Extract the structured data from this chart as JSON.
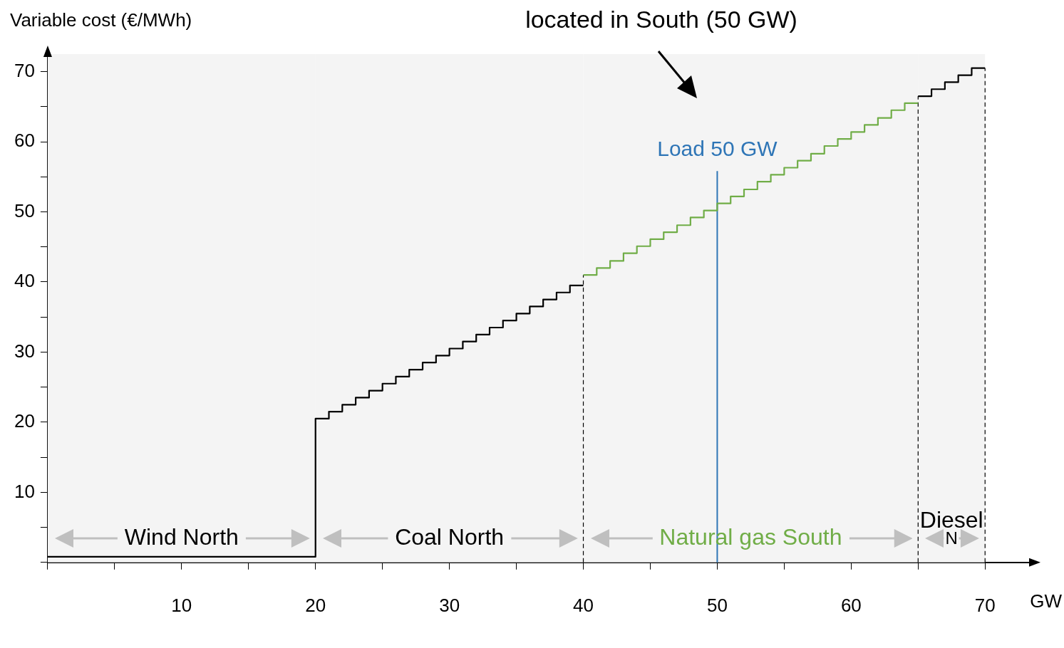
{
  "chart_data": {
    "type": "step",
    "title": "located in South (50 GW)",
    "xlabel": "GW",
    "ylabel": "Variable cost (€/MWh)",
    "xlim": [
      0,
      73.5
    ],
    "ylim": [
      0,
      72.5
    ],
    "xticks": [
      {
        "value": 0,
        "label": null
      },
      {
        "value": 5,
        "label": null
      },
      10,
      {
        "value": 15,
        "label": null
      },
      20,
      {
        "value": 25,
        "label": null
      },
      30,
      {
        "value": 35,
        "label": null
      },
      40,
      {
        "value": 45,
        "label": null
      },
      50,
      {
        "value": 55,
        "label": null
      },
      60,
      {
        "value": 65,
        "label": null
      },
      70
    ],
    "yticks": [
      {
        "value": 0,
        "label": null
      },
      {
        "value": 5,
        "label": null
      },
      10,
      {
        "value": 15,
        "label": null
      },
      20,
      {
        "value": 25,
        "label": null
      },
      30,
      {
        "value": 35,
        "label": null
      },
      40,
      {
        "value": 45,
        "label": null
      },
      50,
      {
        "value": 55,
        "label": null
      },
      60,
      {
        "value": 65,
        "label": null
      },
      70
    ],
    "grid": false,
    "legend": false,
    "marker": "none",
    "line_style": "solid",
    "series": [
      {
        "color": "#000000",
        "x": [
          0,
          20,
          21,
          22,
          23,
          24,
          25,
          26,
          27,
          28,
          29,
          30,
          31,
          32,
          33,
          34,
          35,
          36,
          37,
          38,
          39,
          40
        ],
        "values": [
          0.8,
          20.5,
          21.5,
          22.5,
          23.5,
          24.5,
          25.5,
          26.5,
          27.5,
          28.5,
          29.5,
          30.5,
          31.5,
          32.5,
          33.5,
          34.5,
          35.5,
          36.5,
          37.5,
          38.5,
          39.5,
          39.5
        ]
      },
      {
        "color": "#70ad47",
        "x": [
          40,
          41,
          42,
          43,
          44,
          45,
          46,
          47,
          48,
          49,
          50,
          51,
          52,
          53,
          54,
          55,
          56,
          57,
          58,
          59,
          60,
          61,
          62,
          63,
          64,
          65
        ],
        "values": [
          41.0,
          42.0,
          43.0,
          44.1,
          45.1,
          46.1,
          47.1,
          48.1,
          49.2,
          50.2,
          51.2,
          52.2,
          53.2,
          54.3,
          55.3,
          56.3,
          57.3,
          58.3,
          59.4,
          60.4,
          61.4,
          62.4,
          63.4,
          64.5,
          65.5,
          65.5
        ]
      },
      {
        "color": "#000000",
        "x": [
          65,
          66,
          67,
          68,
          69,
          70
        ],
        "values": [
          66.5,
          67.5,
          68.5,
          69.5,
          70.5,
          70.5
        ]
      }
    ],
    "ref_lines": [
      {
        "axis": "x",
        "value": 40,
        "color": "#000000",
        "line_style": "dashed"
      },
      {
        "axis": "x",
        "value": 50,
        "label": "Load 50 GW",
        "color": "#2e75b6",
        "line_style": "solid"
      },
      {
        "axis": "x",
        "value": 65,
        "color": "#000000",
        "line_style": "dashed"
      },
      {
        "axis": "x",
        "value": 70,
        "color": "#000000",
        "line_style": "dashed"
      }
    ],
    "bands": [
      {
        "axis": "x",
        "from": 0,
        "to": 20,
        "label": "Wind North",
        "color": "#f4f4f4"
      },
      {
        "axis": "x",
        "from": 20,
        "to": 40,
        "label": "Coal North",
        "color": "#f4f4f4"
      },
      {
        "axis": "x",
        "from": 40,
        "to": 65,
        "label": "Natural gas South",
        "color": "#f4f4f4"
      },
      {
        "axis": "x",
        "from": 65,
        "to": 70,
        "label": "Diesel N",
        "color": "#f4f4f4"
      }
    ]
  }
}
